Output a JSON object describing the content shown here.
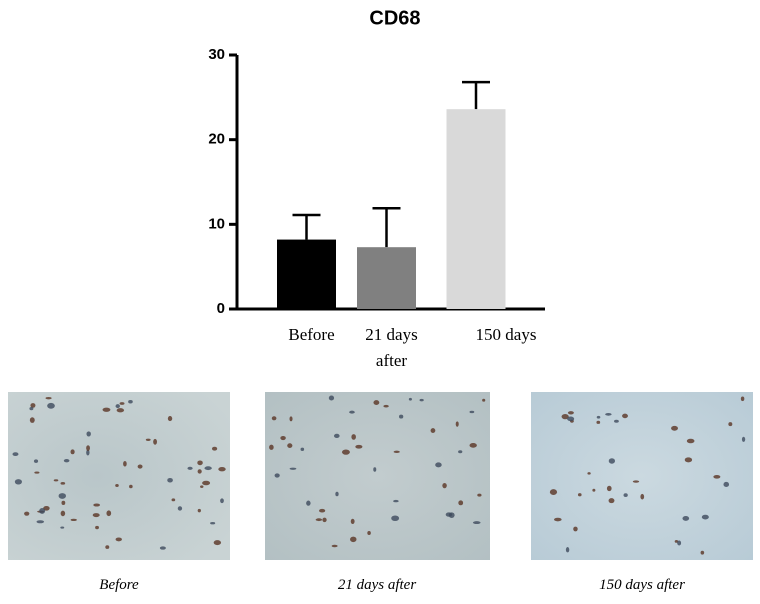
{
  "chart_data": {
    "type": "bar",
    "title": "CD68",
    "categories": [
      "Before",
      "21 days after",
      "150 days"
    ],
    "values": [
      8.2,
      7.3,
      23.6
    ],
    "errors": [
      2.9,
      4.6,
      3.2
    ],
    "colors": [
      "#000000",
      "#808080",
      "#d9d9d9"
    ],
    "ylim": [
      0,
      30
    ],
    "yticks": [
      0,
      10,
      20,
      30
    ]
  },
  "panels": [
    {
      "caption": "Before"
    },
    {
      "caption": "21 days after"
    },
    {
      "caption": "150 days after"
    }
  ]
}
